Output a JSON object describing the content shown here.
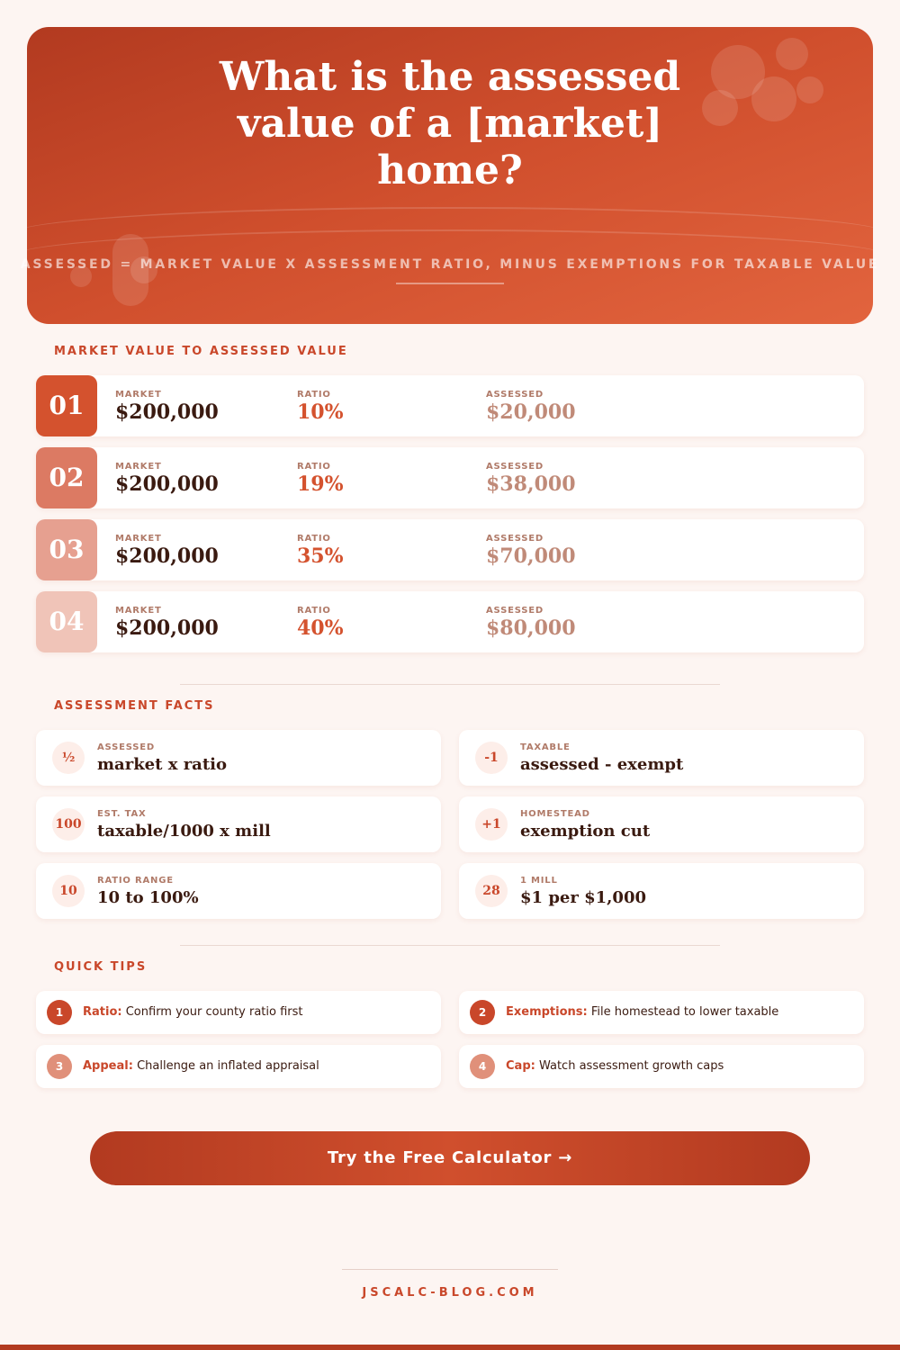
{
  "header": {
    "title": "What is the assessed value of a [market] home?",
    "subtitle": "ASSESSED = MARKET VALUE X ASSESSMENT RATIO, MINUS EXEMPTIONS FOR TAXABLE VALUE"
  },
  "steps": {
    "heading": "MARKET VALUE TO ASSESSED VALUE",
    "rows": [
      {
        "number": "01",
        "market_label": "MARKET",
        "market": "$200,000",
        "ratio_label": "RATIO",
        "ratio": "10%",
        "assessed_label": "ASSESSED",
        "assessed": "$20,000"
      },
      {
        "number": "02",
        "market_label": "MARKET",
        "market": "$200,000",
        "ratio_label": "RATIO",
        "ratio": "19%",
        "assessed_label": "ASSESSED",
        "assessed": "$38,000"
      },
      {
        "number": "03",
        "market_label": "MARKET",
        "market": "$200,000",
        "ratio_label": "RATIO",
        "ratio": "35%",
        "assessed_label": "ASSESSED",
        "assessed": "$70,000"
      },
      {
        "number": "04",
        "market_label": "MARKET",
        "market": "$200,000",
        "ratio_label": "RATIO",
        "ratio": "40%",
        "assessed_label": "ASSESSED",
        "assessed": "$80,000"
      }
    ]
  },
  "facts": {
    "heading": "ASSESSMENT FACTS",
    "items": [
      {
        "icon": "½",
        "label": "ASSESSED",
        "text": "market x ratio"
      },
      {
        "icon": "-1",
        "label": "TAXABLE",
        "text": "assessed - exempt"
      },
      {
        "icon": "100",
        "label": "EST. TAX",
        "text": "taxable/1000 x mill"
      },
      {
        "icon": "+1",
        "label": "HOMESTEAD",
        "text": "exemption cut"
      },
      {
        "icon": "10",
        "label": "RATIO RANGE",
        "text": "10 to 100%"
      },
      {
        "icon": "28",
        "label": "1 MILL",
        "text": "$1 per $1,000"
      }
    ]
  },
  "tips": {
    "heading": "QUICK TIPS",
    "items": [
      {
        "number": "1",
        "title": "Ratio:",
        "text": "Confirm your county ratio first"
      },
      {
        "number": "2",
        "title": "Exemptions:",
        "text": "File homestead to lower taxable"
      },
      {
        "number": "3",
        "title": "Appeal:",
        "text": "Challenge an inflated appraisal"
      },
      {
        "number": "4",
        "title": "Cap:",
        "text": "Watch assessment growth caps"
      }
    ]
  },
  "cta": "Try the Free Calculator →",
  "footer": "JSCALC-BLOG.COM"
}
